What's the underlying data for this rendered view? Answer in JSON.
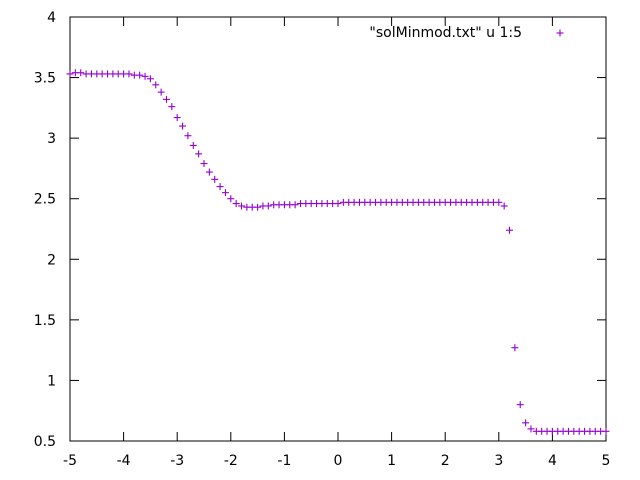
{
  "chart_data": {
    "type": "scatter",
    "title": "",
    "xlabel": "",
    "ylabel": "",
    "xlim": [
      -5,
      5
    ],
    "ylim": [
      0.5,
      4
    ],
    "xticks": [
      "-5",
      "-4",
      "-3",
      "-2",
      "-1",
      "0",
      "1",
      "2",
      "3",
      "4",
      "5"
    ],
    "yticks": [
      "0.5",
      "1",
      "1.5",
      "2",
      "2.5",
      "3",
      "3.5",
      "4"
    ],
    "grid": false,
    "legend_position": "top-right",
    "marker": "plus",
    "color": "#9400d3",
    "series": [
      {
        "name": "\"solMinmod.txt\" u 1:5",
        "x": [
          -5.0,
          -4.9,
          -4.8,
          -4.7,
          -4.6,
          -4.5,
          -4.4,
          -4.3,
          -4.2,
          -4.1,
          -4.0,
          -3.9,
          -3.8,
          -3.7,
          -3.6,
          -3.5,
          -3.4,
          -3.3,
          -3.2,
          -3.1,
          -3.0,
          -2.9,
          -2.8,
          -2.7,
          -2.6,
          -2.5,
          -2.4,
          -2.3,
          -2.2,
          -2.1,
          -2.0,
          -1.9,
          -1.8,
          -1.7,
          -1.6,
          -1.5,
          -1.4,
          -1.3,
          -1.2,
          -1.1,
          -1.0,
          -0.9,
          -0.8,
          -0.7,
          -0.6,
          -0.5,
          -0.4,
          -0.3,
          -0.2,
          -0.1,
          0.0,
          0.1,
          0.2,
          0.3,
          0.4,
          0.5,
          0.6,
          0.7,
          0.8,
          0.9,
          1.0,
          1.1,
          1.2,
          1.3,
          1.4,
          1.5,
          1.6,
          1.7,
          1.8,
          1.9,
          2.0,
          2.1,
          2.2,
          2.3,
          2.4,
          2.5,
          2.6,
          2.7,
          2.8,
          2.9,
          3.0,
          3.1,
          3.2,
          3.3,
          3.4,
          3.5,
          3.6,
          3.7,
          3.8,
          3.9,
          4.0,
          4.1,
          4.2,
          4.3,
          4.4,
          4.5,
          4.6,
          4.7,
          4.8,
          4.9,
          5.0
        ],
        "y": [
          3.53,
          3.54,
          3.54,
          3.53,
          3.53,
          3.53,
          3.53,
          3.53,
          3.53,
          3.53,
          3.53,
          3.53,
          3.52,
          3.52,
          3.51,
          3.49,
          3.44,
          3.38,
          3.32,
          3.26,
          3.17,
          3.1,
          3.02,
          2.94,
          2.87,
          2.79,
          2.72,
          2.66,
          2.6,
          2.55,
          2.5,
          2.46,
          2.44,
          2.43,
          2.43,
          2.43,
          2.44,
          2.44,
          2.45,
          2.45,
          2.45,
          2.45,
          2.45,
          2.46,
          2.46,
          2.46,
          2.46,
          2.46,
          2.46,
          2.46,
          2.46,
          2.47,
          2.47,
          2.47,
          2.47,
          2.47,
          2.47,
          2.47,
          2.47,
          2.47,
          2.47,
          2.47,
          2.47,
          2.47,
          2.47,
          2.47,
          2.47,
          2.47,
          2.47,
          2.47,
          2.47,
          2.47,
          2.47,
          2.47,
          2.47,
          2.47,
          2.47,
          2.47,
          2.47,
          2.47,
          2.47,
          2.44,
          2.24,
          1.27,
          0.8,
          0.65,
          0.6,
          0.58,
          0.58,
          0.58,
          0.58,
          0.58,
          0.58,
          0.58,
          0.58,
          0.58,
          0.58,
          0.58,
          0.58,
          0.58,
          0.58
        ]
      }
    ]
  }
}
